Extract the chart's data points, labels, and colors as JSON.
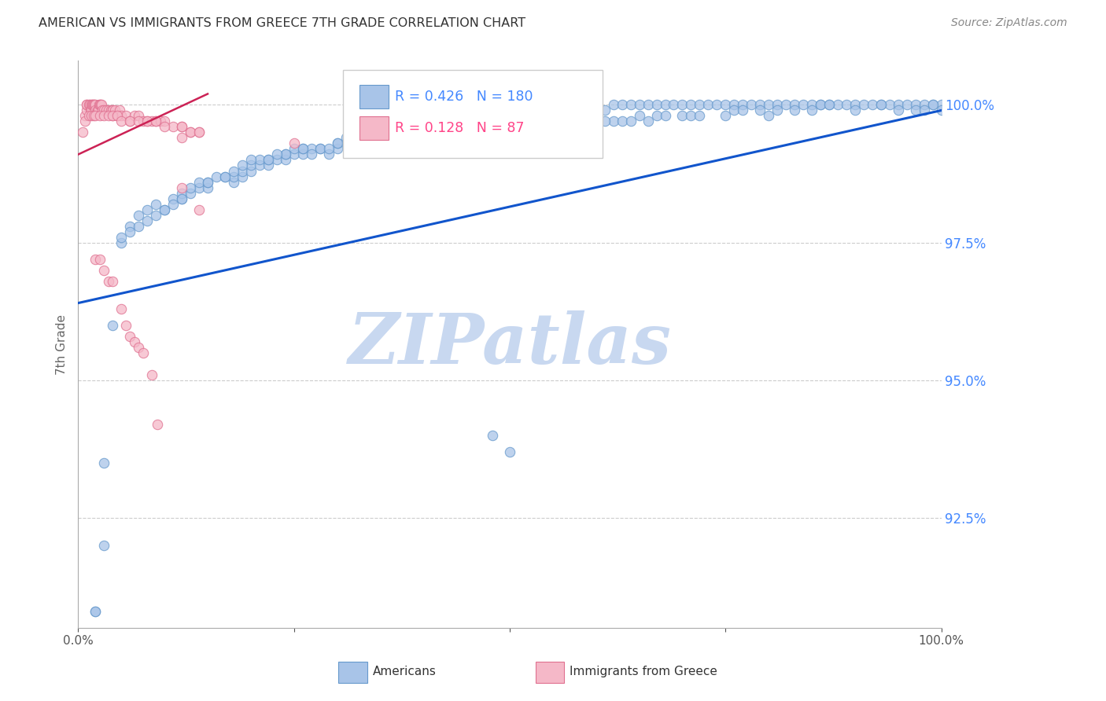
{
  "title": "AMERICAN VS IMMIGRANTS FROM GREECE 7TH GRADE CORRELATION CHART",
  "source": "Source: ZipAtlas.com",
  "ylabel": "7th Grade",
  "ytick_labels": [
    "92.5%",
    "95.0%",
    "97.5%",
    "100.0%"
  ],
  "ytick_values": [
    0.925,
    0.95,
    0.975,
    1.0
  ],
  "xmin": 0.0,
  "xmax": 1.0,
  "ymin": 0.905,
  "ymax": 1.008,
  "blue_R": 0.426,
  "blue_N": 180,
  "pink_R": 0.128,
  "pink_N": 87,
  "blue_color": "#a8c4e8",
  "blue_edge": "#6699cc",
  "pink_color": "#f5b8c8",
  "pink_edge": "#e07090",
  "blue_line_color": "#1155cc",
  "pink_line_color": "#cc2255",
  "legend_blue_color": "#4488ff",
  "legend_pink_color": "#ff4488",
  "watermark_color": "#c8d8f0",
  "background_color": "#ffffff",
  "title_color": "#333333",
  "ytick_color": "#4488ff",
  "xtick_color": "#555555",
  "grid_color": "#cccccc",
  "marker_size": 80,
  "blue_x": [
    0.02,
    0.03,
    0.04,
    0.05,
    0.06,
    0.07,
    0.08,
    0.09,
    0.1,
    0.11,
    0.12,
    0.12,
    0.13,
    0.14,
    0.14,
    0.15,
    0.15,
    0.16,
    0.17,
    0.18,
    0.18,
    0.19,
    0.19,
    0.2,
    0.2,
    0.21,
    0.21,
    0.22,
    0.22,
    0.23,
    0.24,
    0.24,
    0.25,
    0.25,
    0.26,
    0.26,
    0.27,
    0.28,
    0.29,
    0.3,
    0.3,
    0.31,
    0.31,
    0.32,
    0.33,
    0.34,
    0.35,
    0.36,
    0.37,
    0.38,
    0.39,
    0.4,
    0.4,
    0.41,
    0.42,
    0.43,
    0.44,
    0.45,
    0.46,
    0.47,
    0.48,
    0.49,
    0.5,
    0.5,
    0.51,
    0.52,
    0.53,
    0.54,
    0.55,
    0.56,
    0.57,
    0.58,
    0.59,
    0.6,
    0.61,
    0.62,
    0.63,
    0.64,
    0.65,
    0.66,
    0.67,
    0.68,
    0.69,
    0.7,
    0.71,
    0.72,
    0.73,
    0.74,
    0.75,
    0.76,
    0.77,
    0.78,
    0.79,
    0.8,
    0.81,
    0.82,
    0.83,
    0.84,
    0.85,
    0.86,
    0.87,
    0.88,
    0.89,
    0.9,
    0.91,
    0.92,
    0.93,
    0.94,
    0.95,
    0.96,
    0.97,
    0.98,
    0.99,
    1.0,
    0.02,
    0.03,
    0.13,
    0.15,
    0.17,
    0.19,
    0.2,
    0.22,
    0.24,
    0.26,
    0.28,
    0.3,
    0.35,
    0.4,
    0.45,
    0.48,
    0.5,
    0.55,
    0.6,
    0.62,
    0.65,
    0.7,
    0.75,
    0.8,
    0.85,
    0.9,
    0.95,
    0.97,
    0.98,
    0.99,
    1.0,
    0.05,
    0.06,
    0.07,
    0.08,
    0.09,
    0.1,
    0.11,
    0.12,
    0.18,
    0.23,
    0.27,
    0.29,
    0.32,
    0.33,
    0.36,
    0.38,
    0.41,
    0.43,
    0.46,
    0.51,
    0.53,
    0.56,
    0.58,
    0.59,
    0.61,
    0.63,
    0.64,
    0.66,
    0.67,
    0.68,
    0.71,
    0.72,
    0.76,
    0.77,
    0.79,
    0.81,
    0.83,
    0.86,
    0.87,
    0.93
  ],
  "blue_y": [
    0.908,
    0.92,
    0.96,
    0.975,
    0.978,
    0.98,
    0.981,
    0.982,
    0.981,
    0.983,
    0.983,
    0.984,
    0.984,
    0.985,
    0.986,
    0.985,
    0.986,
    0.987,
    0.987,
    0.986,
    0.987,
    0.987,
    0.988,
    0.988,
    0.989,
    0.989,
    0.99,
    0.989,
    0.99,
    0.99,
    0.99,
    0.991,
    0.991,
    0.992,
    0.991,
    0.992,
    0.992,
    0.992,
    0.991,
    0.992,
    0.993,
    0.993,
    0.994,
    0.993,
    0.994,
    0.994,
    0.994,
    0.995,
    0.994,
    0.994,
    0.995,
    0.995,
    0.996,
    0.996,
    0.995,
    0.996,
    0.996,
    0.996,
    0.997,
    0.997,
    0.997,
    0.997,
    0.997,
    0.998,
    0.998,
    0.998,
    0.998,
    0.998,
    0.999,
    0.999,
    0.999,
    0.999,
    0.999,
    0.999,
    0.999,
    1.0,
    1.0,
    1.0,
    1.0,
    1.0,
    1.0,
    1.0,
    1.0,
    1.0,
    1.0,
    1.0,
    1.0,
    1.0,
    1.0,
    1.0,
    1.0,
    1.0,
    1.0,
    1.0,
    1.0,
    1.0,
    1.0,
    1.0,
    1.0,
    1.0,
    1.0,
    1.0,
    1.0,
    1.0,
    1.0,
    1.0,
    1.0,
    1.0,
    1.0,
    1.0,
    1.0,
    1.0,
    1.0,
    1.0,
    0.908,
    0.935,
    0.985,
    0.986,
    0.987,
    0.989,
    0.99,
    0.99,
    0.991,
    0.992,
    0.992,
    0.993,
    0.994,
    0.995,
    0.995,
    0.94,
    0.937,
    0.996,
    0.997,
    0.997,
    0.998,
    0.998,
    0.998,
    0.998,
    0.999,
    0.999,
    0.999,
    0.999,
    0.999,
    1.0,
    0.999,
    0.976,
    0.977,
    0.978,
    0.979,
    0.98,
    0.981,
    0.982,
    0.983,
    0.988,
    0.991,
    0.991,
    0.992,
    0.993,
    0.993,
    0.994,
    0.994,
    0.995,
    0.995,
    0.996,
    0.996,
    0.996,
    0.997,
    0.997,
    0.997,
    0.997,
    0.997,
    0.997,
    0.997,
    0.998,
    0.998,
    0.998,
    0.998,
    0.999,
    0.999,
    0.999,
    0.999,
    0.999,
    1.0,
    1.0,
    1.0
  ],
  "pink_x": [
    0.005,
    0.008,
    0.01,
    0.01,
    0.01,
    0.012,
    0.013,
    0.014,
    0.015,
    0.015,
    0.016,
    0.017,
    0.018,
    0.019,
    0.02,
    0.02,
    0.022,
    0.023,
    0.024,
    0.025,
    0.026,
    0.027,
    0.028,
    0.03,
    0.032,
    0.035,
    0.038,
    0.04,
    0.04,
    0.04,
    0.042,
    0.045,
    0.048,
    0.05,
    0.055,
    0.06,
    0.065,
    0.07,
    0.075,
    0.08,
    0.085,
    0.09,
    0.095,
    0.1,
    0.11,
    0.12,
    0.13,
    0.14,
    0.008,
    0.012,
    0.015,
    0.018,
    0.02,
    0.025,
    0.03,
    0.035,
    0.04,
    0.045,
    0.05,
    0.06,
    0.07,
    0.08,
    0.09,
    0.1,
    0.12,
    0.13,
    0.14,
    0.12,
    0.25,
    0.12,
    0.14,
    0.02,
    0.025,
    0.03,
    0.035,
    0.04,
    0.05,
    0.055,
    0.06,
    0.065,
    0.07,
    0.075,
    0.085,
    0.092
  ],
  "pink_y": [
    0.995,
    0.998,
    0.999,
    1.0,
    1.0,
    1.0,
    1.0,
    0.999,
    0.999,
    1.0,
    1.0,
    1.0,
    1.0,
    1.0,
    1.0,
    0.999,
    0.999,
    0.999,
    1.0,
    1.0,
    1.0,
    1.0,
    0.999,
    0.999,
    0.999,
    0.999,
    0.999,
    0.999,
    0.999,
    0.998,
    0.999,
    0.998,
    0.999,
    0.998,
    0.998,
    0.997,
    0.998,
    0.998,
    0.997,
    0.997,
    0.997,
    0.997,
    0.997,
    0.997,
    0.996,
    0.996,
    0.995,
    0.995,
    0.997,
    0.998,
    0.998,
    0.998,
    0.998,
    0.998,
    0.998,
    0.998,
    0.998,
    0.998,
    0.997,
    0.997,
    0.997,
    0.997,
    0.997,
    0.996,
    0.996,
    0.995,
    0.995,
    0.994,
    0.993,
    0.985,
    0.981,
    0.972,
    0.972,
    0.97,
    0.968,
    0.968,
    0.963,
    0.96,
    0.958,
    0.957,
    0.956,
    0.955,
    0.951,
    0.942
  ],
  "blue_trend_x": [
    0.0,
    1.0
  ],
  "blue_trend_y": [
    0.964,
    0.999
  ],
  "pink_trend_x": [
    0.0,
    0.15
  ],
  "pink_trend_y": [
    0.991,
    1.002
  ]
}
